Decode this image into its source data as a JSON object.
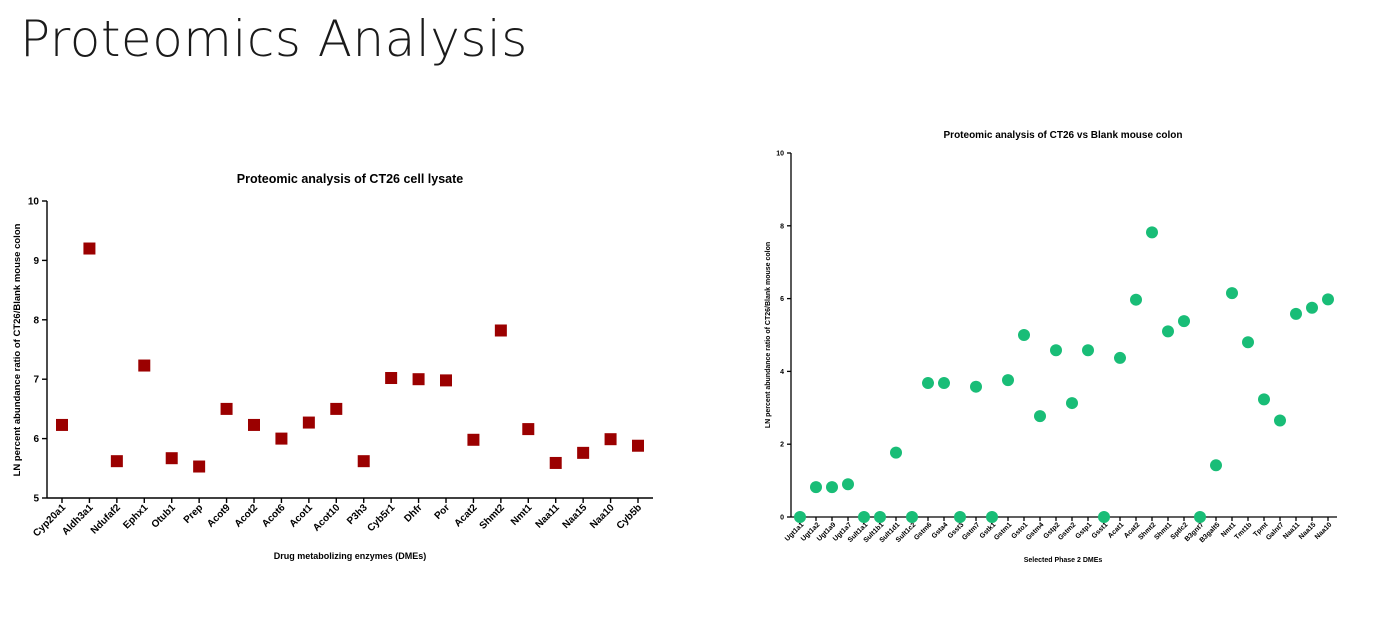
{
  "slide": {
    "title": "Proteomics Analysis"
  },
  "chart_data": [
    {
      "type": "scatter",
      "title": "Proteomic analysis of CT26 cell lysate",
      "xlabel": "Drug metabolizing enzymes (DMEs)",
      "ylabel": "LN percent abundance ratio of CT26/Blank mouse colon",
      "ylim": [
        5,
        10
      ],
      "yticks": [
        5,
        6,
        7,
        8,
        9,
        10
      ],
      "grid": false,
      "marker": "square",
      "color": "#9b0000",
      "categories": [
        "Cyp20a1",
        "Aldh3a1",
        "Ndufaf2",
        "Ephx1",
        "Otub1",
        "Prep",
        "Acot9",
        "Acot2",
        "Acot6",
        "Acot1",
        "Acot10",
        "P3h3",
        "Cyb5r1",
        "Dhfr",
        "Por",
        "Acat2",
        "Shmt2",
        "Nmt1",
        "Naa11",
        "Naa15",
        "Naa10",
        "Cyb5b"
      ],
      "values": [
        6.23,
        9.2,
        5.62,
        7.23,
        5.67,
        5.53,
        6.5,
        6.23,
        6.0,
        6.27,
        6.5,
        5.62,
        7.02,
        7.0,
        6.98,
        5.98,
        7.82,
        6.16,
        5.59,
        5.76,
        5.99,
        5.88
      ]
    },
    {
      "type": "scatter",
      "title": "Proteomic analysis of CT26 vs Blank mouse colon",
      "xlabel": "Selected Phase 2 DMEs",
      "ylabel": "LN percent abundance ratio of CT26/Blank mouse colon",
      "ylim": [
        0,
        10
      ],
      "yticks": [
        0,
        2,
        4,
        6,
        8,
        10
      ],
      "grid": false,
      "marker": "circle",
      "color": "#19bd77",
      "categories": [
        "Ugt1a1",
        "Ugt1a2",
        "Ugt1a9",
        "Ugt1a7",
        "Sult1a1",
        "Sult1b1",
        "Sult1d1",
        "Sult1c2",
        "Gstm6",
        "Gsta4",
        "Gsst3",
        "Gstm7",
        "Gstk1",
        "Gstm1",
        "Gsto1",
        "Gstm4",
        "Gstp2",
        "Gstm2",
        "Gstp1",
        "Gsst1",
        "Acat1",
        "Acat2",
        "Shmt2",
        "Shmt1",
        "Sptlc2",
        "B3gnt7",
        "B3galt5",
        "Nmt1",
        "Tmt1b",
        "Tpmt",
        "Galnt7",
        "Naa11",
        "Naa15",
        "Naa10"
      ],
      "values": [
        0,
        0.82,
        0.82,
        0.9,
        0,
        0,
        1.77,
        0,
        3.68,
        3.68,
        0,
        3.58,
        0,
        3.76,
        5.0,
        2.77,
        4.58,
        3.13,
        4.58,
        0,
        4.37,
        5.97,
        7.82,
        5.1,
        5.38,
        0,
        1.42,
        6.15,
        4.8,
        3.23,
        2.65,
        5.58,
        5.75,
        5.98
      ]
    }
  ]
}
